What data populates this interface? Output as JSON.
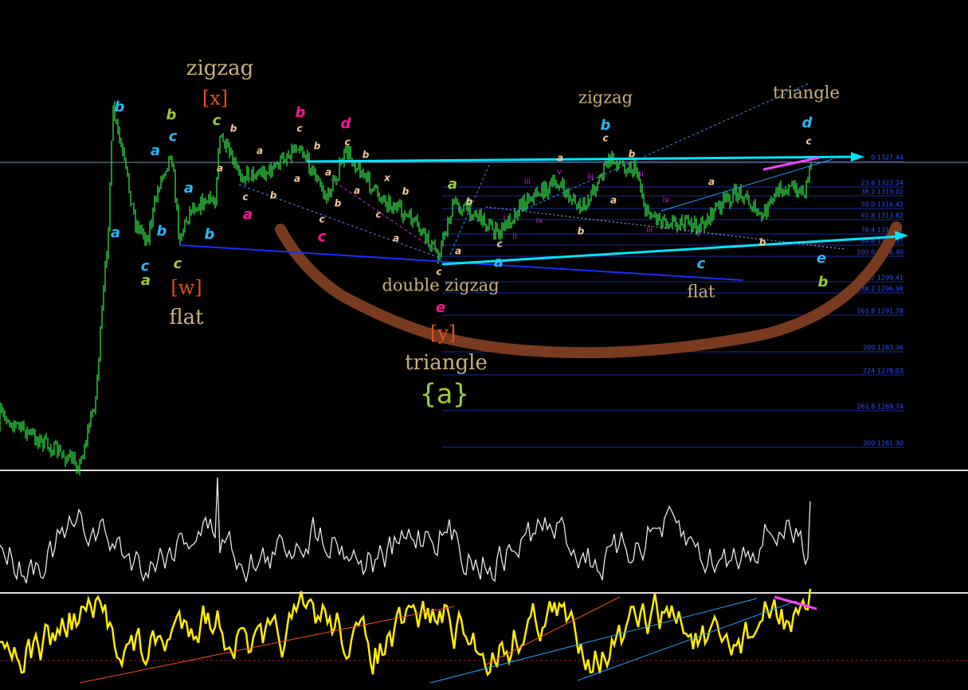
{
  "labels": [
    "zigzag",
    "[x]",
    "[w]",
    "flat",
    "double zigzag",
    "[y]",
    "triangle",
    "{a}",
    "zigzag",
    "triangle",
    "flat",
    "b",
    "a",
    "c",
    "a",
    "b",
    "b",
    "a",
    "c",
    "b",
    "c",
    "a",
    "c",
    "a",
    "b",
    "b",
    "d",
    "a",
    "c",
    "e",
    "b",
    "a",
    "d",
    "c",
    "e",
    "c",
    "b",
    "a",
    "c",
    "a",
    "b",
    "a",
    "b",
    "c",
    "b",
    "a",
    "c",
    "b",
    "x",
    "b",
    "c",
    "a",
    "a",
    "c",
    "a",
    "b",
    "c",
    "c",
    "b",
    "a",
    "a",
    "b",
    "a",
    "c",
    "b",
    "iii",
    "v",
    "iii",
    "ii",
    "iv",
    "iv",
    "ii",
    "iii",
    "v",
    "i"
  ],
  "fib_levels": [
    "0 1327.44",
    "23.6 1322.24",
    "38.2 1319.02",
    "50.0 1316.42",
    "61.8 1313.82",
    "76.4 1310.61",
    "88.6 1308.37",
    "100.0 1306.40",
    "127.2 1299.41",
    "138.2 1296.98",
    "161.8 1291.78",
    "200 1283.36",
    "224 1278.03",
    "261.8 1269.74",
    "300 1261.30"
  ]
}
